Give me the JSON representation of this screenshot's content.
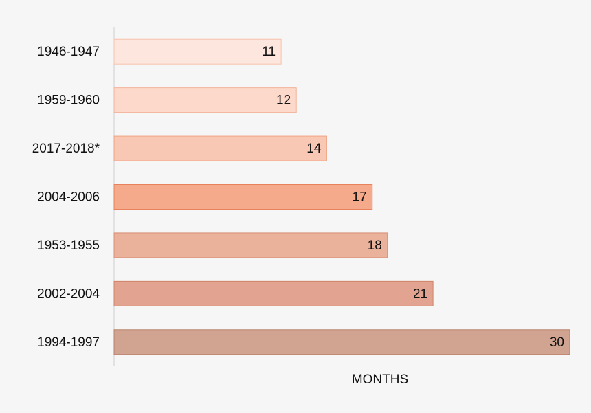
{
  "chart_data": {
    "type": "bar",
    "orientation": "horizontal",
    "categories": [
      "1946-1947",
      "1959-1960",
      "2017-2018*",
      "2004-2006",
      "1953-1955",
      "2002-2004",
      "1994-1997"
    ],
    "values": [
      11,
      12,
      14,
      17,
      18,
      21,
      30
    ],
    "colors": [
      "#fde6dd",
      "#fcd9cb",
      "#f9c8b4",
      "#f5aa8b",
      "#eab19b",
      "#e2a490",
      "#d1a492"
    ],
    "edge_colors": [
      "#f7c2ad",
      "#f3b39a",
      "#f0a282",
      "#e8825c",
      "#d98e72",
      "#cf8366",
      "#b8806a"
    ],
    "xlim": [
      0,
      30
    ],
    "xlabel": "MONTHS"
  }
}
